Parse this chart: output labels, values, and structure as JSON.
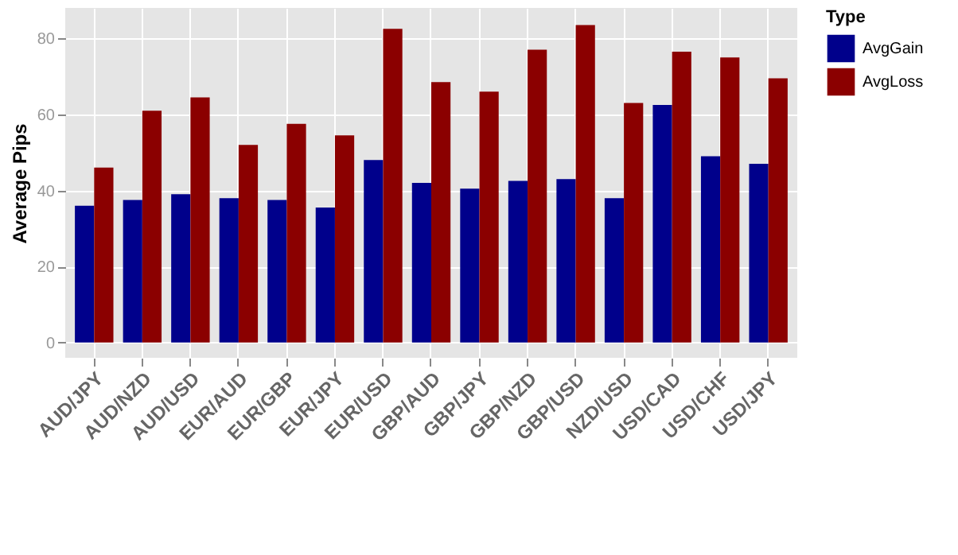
{
  "chart_data": {
    "type": "bar",
    "ylabel": "Average Pips",
    "legend_title": "Type",
    "legend": "right",
    "grid": true,
    "categories": [
      "AUD/JPY",
      "AUD/NZD",
      "AUD/USD",
      "EUR/AUD",
      "EUR/GBP",
      "EUR/JPY",
      "EUR/USD",
      "GBP/AUD",
      "GBP/JPY",
      "GBP/NZD",
      "GBP/USD",
      "NZD/USD",
      "USD/CAD",
      "USD/CHF",
      "USD/JPY"
    ],
    "series": [
      {
        "name": "AvgGain",
        "color": "#00008b",
        "values": [
          36,
          37.5,
          39,
          38,
          37.5,
          35.5,
          48,
          42,
          40.5,
          42.5,
          43,
          38,
          62.5,
          49,
          47
        ]
      },
      {
        "name": "AvgLoss",
        "color": "#8b0000",
        "values": [
          46,
          61,
          64.5,
          52,
          57.5,
          54.5,
          82.5,
          68.5,
          66,
          77,
          83.5,
          63,
          76.5,
          75,
          69.5
        ]
      }
    ],
    "ylim": [
      -4,
      88
    ],
    "yticks": [
      0,
      20,
      40,
      60,
      80
    ]
  }
}
